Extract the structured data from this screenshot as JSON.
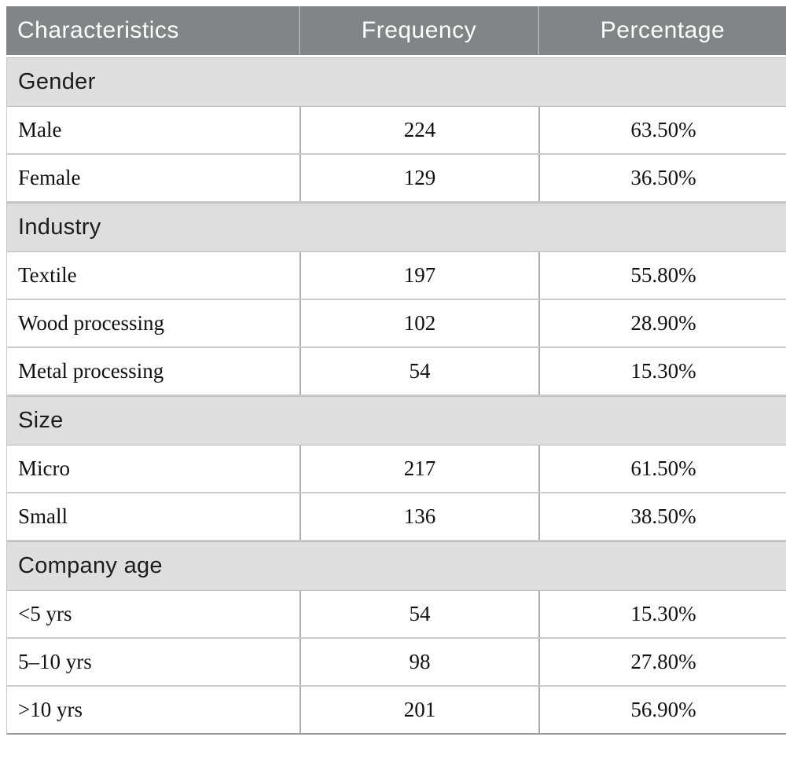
{
  "colors": {
    "header_bg": "#828487",
    "header_text": "#ffffff",
    "section_bg": "#dededf",
    "row_bg": "#ffffff",
    "row_border": "#cbcbcb",
    "column_divider": "#aaacae",
    "data_text": "#111111"
  },
  "table": {
    "columns": [
      "Characteristics",
      "Frequency",
      "Percentage"
    ],
    "sections": [
      {
        "label": "Gender",
        "rows": [
          {
            "label": "Male",
            "frequency": "224",
            "percentage": "63.50%"
          },
          {
            "label": "Female",
            "frequency": "129",
            "percentage": "36.50%"
          }
        ]
      },
      {
        "label": "Industry",
        "rows": [
          {
            "label": "Textile",
            "frequency": "197",
            "percentage": "55.80%"
          },
          {
            "label": "Wood processing",
            "frequency": "102",
            "percentage": "28.90%"
          },
          {
            "label": "Metal processing",
            "frequency": "54",
            "percentage": "15.30%"
          }
        ]
      },
      {
        "label": "Size",
        "rows": [
          {
            "label": "Micro",
            "frequency": "217",
            "percentage": "61.50%"
          },
          {
            "label": "Small",
            "frequency": "136",
            "percentage": "38.50%"
          }
        ]
      },
      {
        "label": "Company age",
        "rows": [
          {
            "label": "<5 yrs",
            "frequency": "54",
            "percentage": "15.30%"
          },
          {
            "label": "5–10 yrs",
            "frequency": "98",
            "percentage": "27.80%"
          },
          {
            "label": ">10 yrs",
            "frequency": "201",
            "percentage": "56.90%"
          }
        ]
      }
    ]
  }
}
